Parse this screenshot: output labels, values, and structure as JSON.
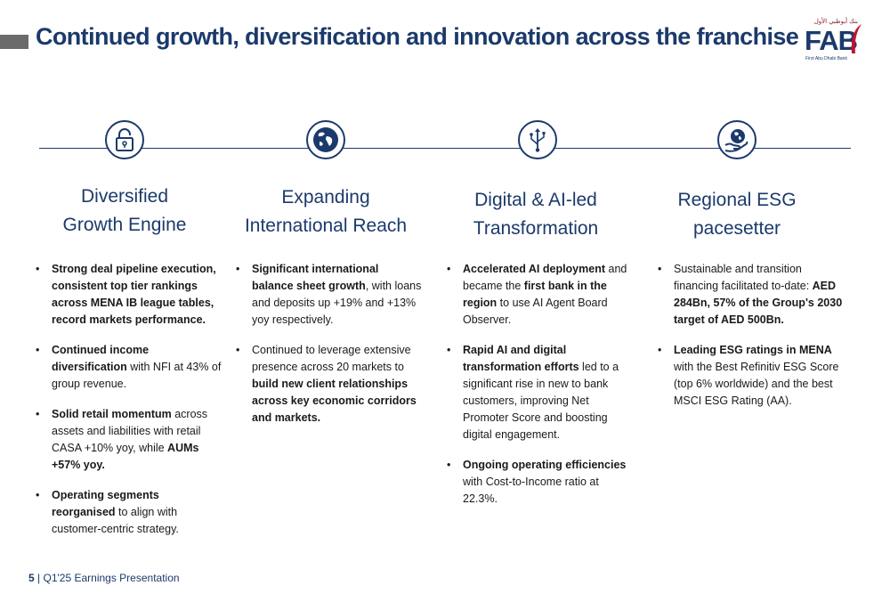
{
  "header": {
    "title": "Continued growth, diversification and innovation across the franchise"
  },
  "logo": {
    "mark": "FAB",
    "arabic": "بنك أبوظبي الأول",
    "subtitle": "First Abu Dhabi Bank",
    "brand_color": "#1b3a6b",
    "accent_color": "#c8102e"
  },
  "columns": [
    {
      "icon": "padlock-icon",
      "heading_lines": [
        "Diversified",
        "Growth Engine"
      ],
      "bullets": [
        [
          {
            "b": "Strong deal pipeline execution, consistent top tier rankings across MENA IB league tables, record markets performance."
          }
        ],
        [
          {
            "b": "Continued income diversification"
          },
          {
            "t": " with NFI at 43% of  group revenue."
          }
        ],
        [
          {
            "b": "Solid retail momentum"
          },
          {
            "t": " across assets and liabilities with retail CASA +10% yoy, while "
          },
          {
            "b": "AUMs +57% yoy."
          }
        ],
        [
          {
            "b": "Operating segments reorganised"
          },
          {
            "t": " to align with customer-centric strategy."
          }
        ]
      ]
    },
    {
      "icon": "globe-icon",
      "heading_lines": [
        "Expanding",
        "International Reach"
      ],
      "bullets": [
        [
          {
            "b": "Significant international balance sheet growth"
          },
          {
            "t": ", with loans and deposits up +19% and +13% yoy respectively."
          }
        ],
        [
          {
            "t": "Continued to leverage extensive presence across 20 markets to "
          },
          {
            "b": "build new client relationships across key economic corridors and markets."
          }
        ]
      ]
    },
    {
      "icon": "usb-icon",
      "heading_lines": [
        "Digital & AI-led",
        "Transformation"
      ],
      "bullets": [
        [
          {
            "b": "Accelerated AI deployment"
          },
          {
            "t": " and became the "
          },
          {
            "b": "first bank in the region"
          },
          {
            "t": " to use AI Agent Board Observer."
          }
        ],
        [
          {
            "b": "Rapid AI and digital transformation efforts"
          },
          {
            "t": " led to a significant rise in new to bank customers, improving Net Promoter Score and boosting digital engagement."
          }
        ],
        [
          {
            "b": "Ongoing operating efficiencies"
          },
          {
            "t": " with Cost-to-Income ratio at 22.3%."
          }
        ]
      ]
    },
    {
      "icon": "globe-in-hand-icon",
      "heading_lines": [
        "Regional ESG",
        "pacesetter"
      ],
      "bullets": [
        [
          {
            "t": "Sustainable and transition financing facilitated to-date: "
          },
          {
            "b": "AED 284Bn, 57% of the Group's 2030 target of AED 500Bn."
          }
        ],
        [
          {
            "b": "Leading ESG ratings in MENA"
          },
          {
            "t": " with the Best Refinitiv ESG Score (top 6% worldwide) and the best MSCI ESG Rating (AA)."
          }
        ]
      ]
    }
  ],
  "footer": {
    "page": "5",
    "separator": "|",
    "label": "Q1'25 Earnings Presentation"
  }
}
